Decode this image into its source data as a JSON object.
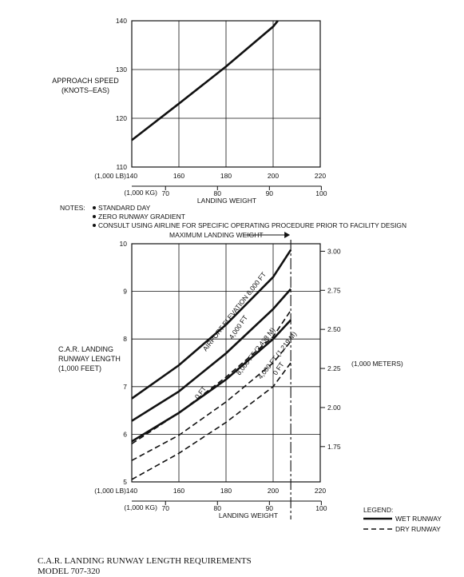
{
  "chart_data": [
    {
      "type": "line",
      "ylabel_lines": [
        "APPROACH SPEED",
        "(KNOTS–EAS)"
      ],
      "xlabel": "LANDING WEIGHT",
      "x_unit_lb": "(1,000 LB)",
      "x_unit_kg": "(1,000 KG)",
      "xlim": [
        140,
        220
      ],
      "ylim": [
        110,
        140
      ],
      "x_ticks": [
        "140",
        "160",
        "180",
        "200",
        "220"
      ],
      "y_ticks": [
        "110",
        "120",
        "130",
        "140"
      ],
      "kg_ticks": [
        {
          "value": 70,
          "label": "70"
        },
        {
          "value": 80,
          "label": "80"
        },
        {
          "value": 90,
          "label": "90"
        },
        {
          "value": 100,
          "label": "100"
        }
      ],
      "grid": true,
      "series": [
        {
          "style": "solid",
          "x": [
            140,
            160,
            180,
            200,
            202
          ],
          "y": [
            115.5,
            123,
            130.6,
            138.8,
            140
          ]
        }
      ]
    },
    {
      "type": "line",
      "ylabel_lines": [
        "C.A.R. LANDING",
        "RUNWAY LENGTH",
        "(1,000 FEET)"
      ],
      "y2label": "(1,000 METERS)",
      "xlabel": "LANDING WEIGHT",
      "x_unit_lb": "(1,000 LB)",
      "x_unit_kg": "(1,000 KG)",
      "xlim": [
        140,
        220
      ],
      "ylim": [
        5,
        10
      ],
      "x_ticks": [
        "140",
        "160",
        "180",
        "200",
        "220"
      ],
      "y_ticks": [
        "5",
        "6",
        "7",
        "8",
        "9",
        "10"
      ],
      "y2_ticks": [
        {
          "value": 1.75,
          "label": "1.75"
        },
        {
          "value": 2.0,
          "label": "2.00"
        },
        {
          "value": 2.25,
          "label": "2.25"
        },
        {
          "value": 2.5,
          "label": "2.50"
        },
        {
          "value": 2.75,
          "label": "2.75"
        },
        {
          "value": 3.0,
          "label": "3.00"
        }
      ],
      "kg_ticks": [
        {
          "value": 70,
          "label": "70"
        },
        {
          "value": 80,
          "label": "80"
        },
        {
          "value": 90,
          "label": "90"
        },
        {
          "value": 100,
          "label": "100"
        }
      ],
      "grid": true,
      "max_landing_weight_label": "MAXIMUM LANDING WEIGHT",
      "max_landing_weight": 207.5,
      "series": [
        {
          "label": "AIRPORT ELEVATION 8,000 FT",
          "style": "solid",
          "x": [
            140,
            160,
            180,
            200,
            207.5
          ],
          "y": [
            6.75,
            7.45,
            8.3,
            9.3,
            9.87
          ]
        },
        {
          "label": "4,000 FT",
          "style": "solid",
          "x": [
            140,
            160,
            180,
            200,
            207.5
          ],
          "y": [
            6.28,
            6.9,
            7.7,
            8.63,
            9.05
          ]
        },
        {
          "label": "0 FT",
          "style": "solid",
          "x": [
            140,
            160,
            180,
            200,
            207.5
          ],
          "y": [
            5.85,
            6.45,
            7.15,
            8.0,
            8.4
          ]
        },
        {
          "label": "8,000 FT (2,438 M)",
          "style": "dashed",
          "x": [
            140,
            160,
            180,
            200,
            207.5
          ],
          "y": [
            5.8,
            6.45,
            7.2,
            8.05,
            8.6
          ]
        },
        {
          "label": "4,000 FT (1,219 M)",
          "style": "dashed",
          "x": [
            140,
            160,
            180,
            200,
            207.5
          ],
          "y": [
            5.45,
            5.98,
            6.68,
            7.5,
            7.95
          ]
        },
        {
          "label": "0 FT",
          "style": "dashed",
          "x": [
            140,
            160,
            180,
            200,
            207.5
          ],
          "y": [
            5.05,
            5.6,
            6.25,
            7.0,
            7.5
          ]
        }
      ]
    }
  ],
  "notes": {
    "heading": "NOTES:",
    "items": [
      "STANDARD DAY",
      "ZERO RUNWAY GRADIENT",
      "CONSULT USING AIRLINE FOR SPECIFIC OPERATING PROCEDURE PRIOR TO FACILITY DESIGN"
    ]
  },
  "legend": {
    "title": "LEGEND:",
    "items": [
      {
        "label": "WET RUNWAY",
        "style": "solid"
      },
      {
        "label": "DRY RUNWAY",
        "style": "dashed"
      }
    ]
  },
  "caption": {
    "line1": "C.A.R. LANDING RUNWAY LENGTH REQUIREMENTS",
    "line2": "MODEL 707-320"
  }
}
